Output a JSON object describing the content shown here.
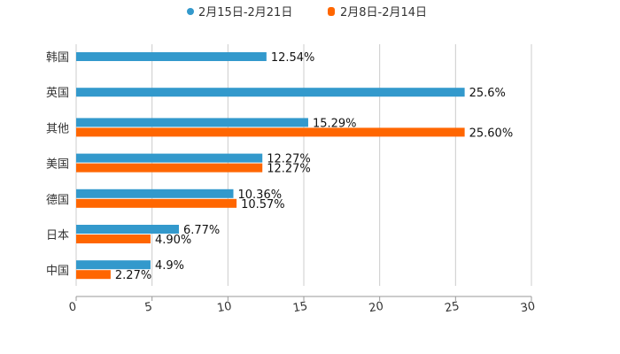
{
  "chart_data": {
    "type": "bar",
    "orientation": "horizontal",
    "categories": [
      "韩国",
      "英国",
      "其他",
      "美国",
      "德国",
      "日本",
      "中国"
    ],
    "series": [
      {
        "name": "2月15日-2月21日",
        "color": "#3399cc",
        "values": [
          12.54,
          25.6,
          15.29,
          12.27,
          10.36,
          6.77,
          4.9
        ],
        "labels": [
          "12.54%",
          "25.6%",
          "15.29%",
          "12.27%",
          "10.36%",
          "6.77%",
          "4.9%"
        ]
      },
      {
        "name": "2月8日-2月14日",
        "color": "#ff6600",
        "values": [
          null,
          null,
          25.6,
          12.27,
          10.57,
          4.9,
          2.27
        ],
        "labels": [
          null,
          null,
          "25.60%",
          "12.27%",
          "10.57%",
          "4.90%",
          "2.27%"
        ]
      }
    ],
    "xlim": [
      0,
      30
    ],
    "xticks": [
      "0",
      "5",
      "10",
      "15",
      "20",
      "25",
      "30"
    ],
    "grid": true,
    "legend_position": "top-center",
    "title": "",
    "xlabel": "",
    "ylabel": ""
  }
}
